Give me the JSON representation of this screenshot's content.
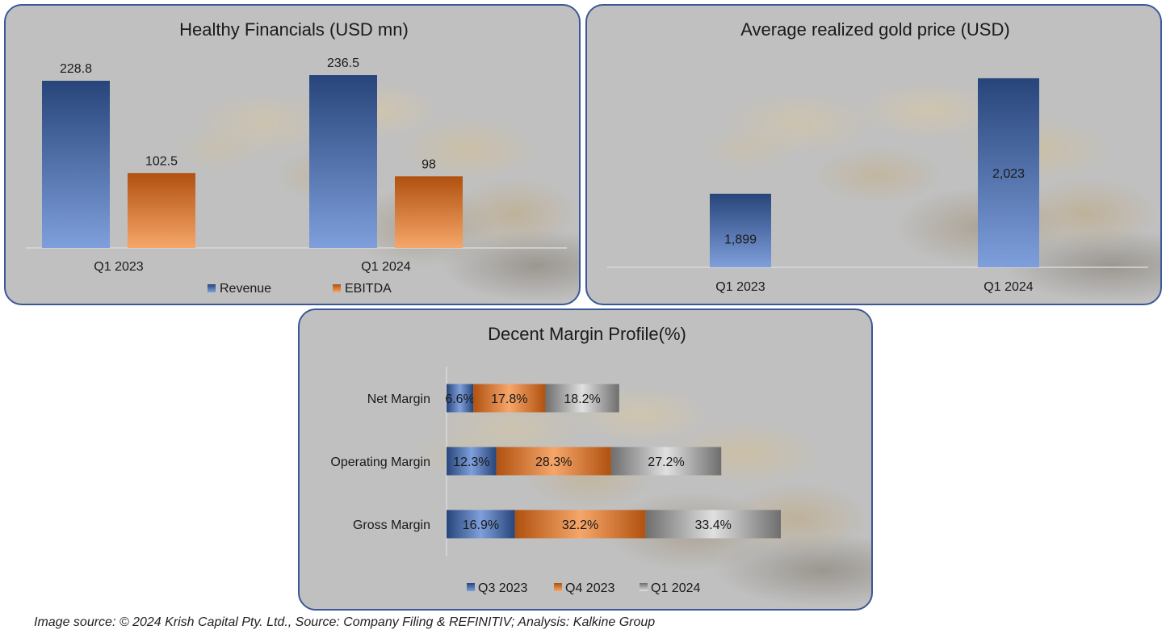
{
  "footer": {
    "text": "Image source: © 2024 Krish Capital Pty. Ltd., Source: Company Filing & REFINITIV; Analysis: Kalkine Group"
  },
  "colors": {
    "blue_dark": "#27457a",
    "blue_light": "#7f9fdc",
    "orange_dark": "#b0510f",
    "orange_light": "#f6a66a",
    "gray_dark": "#6e6e6e",
    "gray_light": "#e0e0e0",
    "panel_bg": "#c0c0c0",
    "panel_border": "#3b5896"
  },
  "chart_data": [
    {
      "id": "financials",
      "type": "bar",
      "title": "Healthy Financials (USD mn)",
      "categories": [
        "Q1 2023",
        "Q1 2024"
      ],
      "series": [
        {
          "name": "Revenue",
          "values": [
            228.8,
            236.5
          ],
          "labels": [
            "228.8",
            "236.5"
          ],
          "color": "blue"
        },
        {
          "name": "EBITDA",
          "values": [
            102.5,
            98
          ],
          "labels": [
            "102.5",
            "98"
          ],
          "color": "orange"
        }
      ],
      "xlabel": "",
      "ylabel": "",
      "ylim": [
        0,
        250
      ],
      "grid": false,
      "legend": "bottom"
    },
    {
      "id": "gold-price",
      "type": "bar",
      "title": "Average realized gold price (USD)",
      "categories": [
        "Q1 2023",
        "Q1 2024"
      ],
      "series": [
        {
          "name": "Average realized gold price",
          "values": [
            1899,
            2023
          ],
          "labels": [
            "1,899",
            "2,023"
          ],
          "color": "blue"
        }
      ],
      "xlabel": "",
      "ylabel": "",
      "ylim": [
        1820,
        2030
      ],
      "grid": false,
      "legend": "none"
    },
    {
      "id": "margins",
      "type": "bar",
      "orientation": "horizontal-stacked",
      "title": "Decent Margin Profile(%)",
      "categories": [
        "Net Margin",
        "Operating Margin",
        "Gross Margin"
      ],
      "series": [
        {
          "name": "Q3 2023",
          "values": [
            6.6,
            12.3,
            16.9
          ],
          "labels": [
            "6.6%",
            "12.3%",
            "16.9%"
          ],
          "color": "blue"
        },
        {
          "name": "Q4 2023",
          "values": [
            17.8,
            28.3,
            32.2
          ],
          "labels": [
            "17.8%",
            "28.3%",
            "32.2%"
          ],
          "color": "orange"
        },
        {
          "name": "Q1 2024",
          "values": [
            18.2,
            27.2,
            33.4
          ],
          "labels": [
            "18.2%",
            "27.2%",
            "33.4%"
          ],
          "color": "gray"
        }
      ],
      "xlabel": "",
      "ylabel": "",
      "xlim": [
        0,
        100
      ],
      "grid": false,
      "legend": "bottom"
    }
  ]
}
